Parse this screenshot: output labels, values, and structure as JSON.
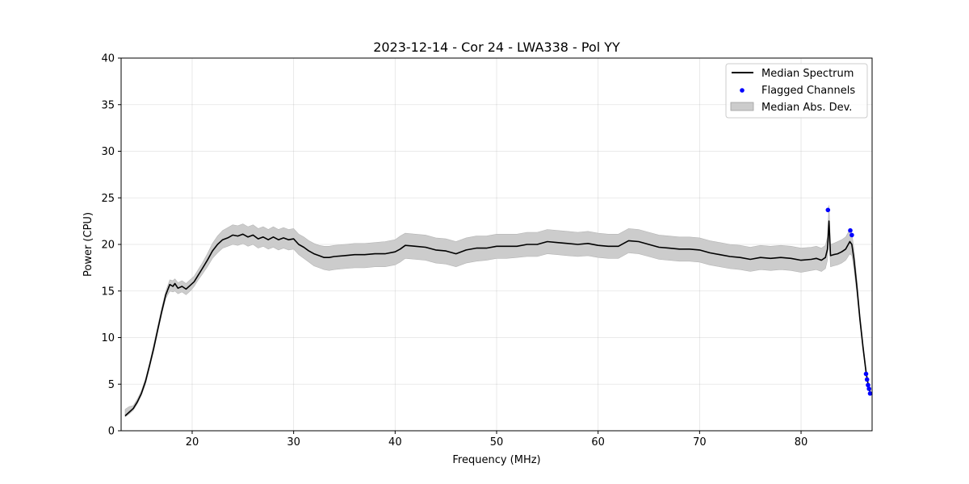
{
  "chart_data": {
    "type": "line",
    "title": "2023-12-14 - Cor 24 - LWA338 - Pol YY",
    "xlabel": "Frequency (MHz)",
    "ylabel": "Power (CPU)",
    "xlim": [
      13,
      87
    ],
    "ylim": [
      0,
      40
    ],
    "xticks": [
      20,
      30,
      40,
      50,
      60,
      70,
      80
    ],
    "yticks": [
      0,
      5,
      10,
      15,
      20,
      25,
      30,
      35,
      40
    ],
    "grid": true,
    "legend_position": "top-right",
    "series": [
      {
        "name": "Median Spectrum",
        "kind": "line",
        "color": "#000000",
        "x": [
          13.4,
          13.8,
          14.2,
          14.6,
          15.0,
          15.4,
          15.8,
          16.2,
          16.6,
          17.0,
          17.4,
          17.8,
          18.1,
          18.3,
          18.6,
          19.0,
          19.4,
          19.8,
          20.2,
          20.6,
          21.0,
          21.5,
          22.0,
          22.5,
          23.0,
          23.5,
          24.0,
          24.5,
          25.0,
          25.5,
          26.0,
          26.5,
          27.0,
          27.5,
          28.0,
          28.5,
          29.0,
          29.5,
          30.0,
          30.5,
          31.0,
          31.5,
          32.0,
          32.5,
          33.0,
          33.5,
          34.0,
          35.0,
          36.0,
          37.0,
          38.0,
          39.0,
          40.0,
          40.5,
          41.0,
          42.0,
          43.0,
          44.0,
          45.0,
          46.0,
          47.0,
          48.0,
          49.0,
          50.0,
          51.0,
          52.0,
          53.0,
          54.0,
          55.0,
          56.0,
          57.0,
          58.0,
          59.0,
          60.0,
          61.0,
          62.0,
          63.0,
          64.0,
          65.0,
          66.0,
          67.0,
          68.0,
          69.0,
          70.0,
          71.0,
          72.0,
          73.0,
          74.0,
          75.0,
          76.0,
          77.0,
          78.0,
          79.0,
          80.0,
          81.0,
          81.5,
          82.0,
          82.4,
          82.6,
          82.75,
          82.9,
          83.2,
          83.6,
          84.0,
          84.4,
          84.8,
          85.0,
          85.2,
          85.5,
          85.8,
          86.1,
          86.4,
          86.6,
          86.8
        ],
        "y": [
          1.6,
          2.0,
          2.4,
          3.1,
          4.0,
          5.3,
          7.0,
          8.8,
          10.8,
          12.8,
          14.6,
          15.7,
          15.5,
          15.8,
          15.3,
          15.5,
          15.2,
          15.6,
          16.0,
          16.7,
          17.4,
          18.3,
          19.3,
          20.0,
          20.5,
          20.7,
          21.0,
          20.9,
          21.1,
          20.8,
          21.0,
          20.6,
          20.8,
          20.5,
          20.8,
          20.5,
          20.7,
          20.5,
          20.6,
          20.0,
          19.7,
          19.3,
          19.0,
          18.8,
          18.6,
          18.6,
          18.7,
          18.8,
          18.9,
          18.9,
          19.0,
          19.0,
          19.2,
          19.5,
          19.9,
          19.8,
          19.7,
          19.4,
          19.3,
          19.0,
          19.4,
          19.6,
          19.6,
          19.8,
          19.8,
          19.8,
          20.0,
          20.0,
          20.3,
          20.2,
          20.1,
          20.0,
          20.1,
          19.9,
          19.8,
          19.8,
          20.4,
          20.3,
          20.0,
          19.7,
          19.6,
          19.5,
          19.5,
          19.4,
          19.1,
          18.9,
          18.7,
          18.6,
          18.4,
          18.6,
          18.5,
          18.6,
          18.5,
          18.3,
          18.4,
          18.5,
          18.3,
          18.6,
          19.5,
          22.5,
          18.8,
          18.9,
          19.0,
          19.2,
          19.5,
          20.3,
          20.0,
          18.5,
          15.5,
          12.0,
          9.0,
          6.3,
          5.0,
          4.2
        ],
        "lower": [
          1.5,
          1.8,
          2.2,
          2.9,
          3.8,
          5.0,
          6.7,
          8.5,
          10.5,
          12.5,
          14.2,
          15.0,
          14.9,
          15.0,
          14.7,
          14.9,
          14.6,
          15.0,
          15.5,
          16.2,
          16.8,
          17.6,
          18.5,
          19.1,
          19.6,
          19.8,
          20.0,
          19.9,
          20.1,
          19.8,
          20.0,
          19.6,
          19.8,
          19.5,
          19.7,
          19.4,
          19.6,
          19.4,
          19.5,
          18.9,
          18.5,
          18.1,
          17.7,
          17.5,
          17.3,
          17.2,
          17.3,
          17.4,
          17.5,
          17.5,
          17.6,
          17.6,
          17.8,
          18.1,
          18.5,
          18.4,
          18.3,
          18.0,
          17.9,
          17.6,
          18.0,
          18.2,
          18.3,
          18.5,
          18.5,
          18.6,
          18.7,
          18.7,
          19.0,
          18.9,
          18.8,
          18.7,
          18.8,
          18.6,
          18.5,
          18.5,
          19.1,
          19.0,
          18.7,
          18.4,
          18.3,
          18.2,
          18.2,
          18.1,
          17.8,
          17.6,
          17.4,
          17.3,
          17.1,
          17.3,
          17.2,
          17.3,
          17.2,
          17.0,
          17.2,
          17.3,
          17.1,
          17.4,
          18.3,
          20.8,
          17.6,
          17.7,
          17.8,
          18.0,
          18.3,
          19.0,
          18.8,
          17.4,
          14.8,
          11.5,
          8.6,
          6.0,
          4.8,
          4.0
        ],
        "upper": [
          2.3,
          2.6,
          2.7,
          3.4,
          4.3,
          5.6,
          7.3,
          9.2,
          11.2,
          13.2,
          15.0,
          16.2,
          16.1,
          16.3,
          15.9,
          16.1,
          15.8,
          16.2,
          16.6,
          17.3,
          18.0,
          19.0,
          20.1,
          20.9,
          21.5,
          21.8,
          22.1,
          22.0,
          22.2,
          21.9,
          22.1,
          21.7,
          21.9,
          21.6,
          21.9,
          21.6,
          21.8,
          21.6,
          21.7,
          21.1,
          20.8,
          20.4,
          20.1,
          19.9,
          19.8,
          19.8,
          19.9,
          20.0,
          20.1,
          20.1,
          20.2,
          20.3,
          20.5,
          20.9,
          21.2,
          21.1,
          21.0,
          20.7,
          20.6,
          20.3,
          20.7,
          20.9,
          20.9,
          21.1,
          21.1,
          21.1,
          21.3,
          21.3,
          21.6,
          21.5,
          21.4,
          21.3,
          21.4,
          21.2,
          21.1,
          21.1,
          21.7,
          21.6,
          21.3,
          21.0,
          20.9,
          20.8,
          20.8,
          20.7,
          20.4,
          20.2,
          20.0,
          19.9,
          19.7,
          19.9,
          19.8,
          19.9,
          19.8,
          19.6,
          19.7,
          19.8,
          19.6,
          19.9,
          20.8,
          24.2,
          20.0,
          20.1,
          20.3,
          20.5,
          20.8,
          21.6,
          21.2,
          19.6,
          16.3,
          12.6,
          9.5,
          6.7,
          5.3,
          4.5
        ]
      },
      {
        "name": "Flagged Channels",
        "kind": "scatter",
        "color": "#0000ff",
        "x": [
          82.65,
          84.85,
          85.0,
          86.4,
          86.5,
          86.6,
          86.7,
          86.8
        ],
        "y": [
          23.7,
          21.5,
          21.0,
          6.1,
          5.5,
          4.9,
          4.5,
          4.0
        ]
      },
      {
        "name": "Median Abs. Dev.",
        "kind": "area",
        "color": "#cccccc"
      }
    ]
  }
}
